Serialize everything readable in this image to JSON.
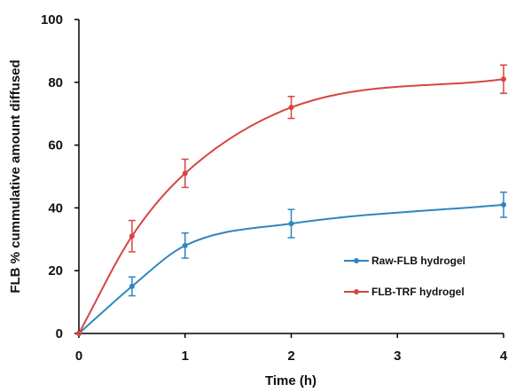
{
  "chart_data": {
    "type": "line",
    "xlabel": "Time (h)",
    "ylabel": "FLB % cummulative amount diffused",
    "xlim": [
      0,
      4
    ],
    "ylim": [
      0,
      100
    ],
    "x_ticks": [
      0,
      1,
      2,
      3,
      4
    ],
    "y_ticks": [
      0,
      20,
      40,
      60,
      80,
      100
    ],
    "grid": false,
    "legend_position": "right",
    "series": [
      {
        "name": "Raw-FLB hydrogel",
        "color": "#2E86C1",
        "x": [
          0,
          0.5,
          1,
          2,
          4
        ],
        "y": [
          0,
          15,
          28,
          35,
          41
        ],
        "error": [
          0,
          3,
          4,
          4.5,
          4
        ]
      },
      {
        "name": "FLB-TRF hydrogel",
        "color": "#D64541",
        "x": [
          0,
          0.5,
          1,
          2,
          4
        ],
        "y": [
          0,
          31,
          51,
          72,
          81
        ],
        "error": [
          0,
          5,
          4.5,
          3.5,
          4.5
        ]
      }
    ]
  }
}
